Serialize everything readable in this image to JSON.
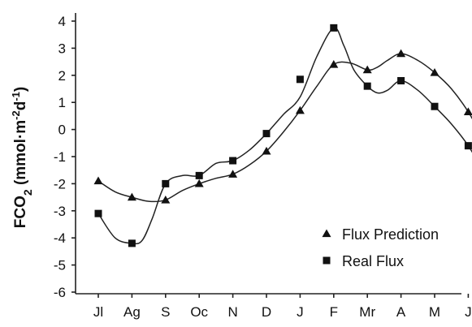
{
  "chart_data": {
    "type": "line",
    "ylabel": "FCO2 (mmol·m-2d-1)",
    "ylabel_parts": {
      "base": "FCO",
      "sub": "2",
      "open": " (mmol·m",
      "exp1": "-2",
      "mid": "d",
      "exp2": "-1",
      "close": ")"
    },
    "xlabel": "",
    "categories": [
      "Jl",
      "Ag",
      "S",
      "Oc",
      "N",
      "D",
      "J",
      "F",
      "Mr",
      "A",
      "M",
      "J"
    ],
    "ylim": [
      -6,
      4
    ],
    "yticks": [
      4,
      3,
      2,
      1,
      0,
      -1,
      -2,
      -3,
      -4,
      -5,
      -6
    ],
    "grid": false,
    "legend_position": "bottom-right",
    "series": [
      {
        "name": "Flux Prediction",
        "marker": "triangle",
        "x": [
          0,
          1,
          2,
          3,
          4,
          5,
          6,
          7,
          8,
          9,
          10,
          11
        ],
        "values": [
          -1.9,
          -2.5,
          -2.6,
          -2.0,
          -1.65,
          -0.8,
          0.7,
          2.4,
          2.2,
          2.8,
          2.1,
          0.65
        ],
        "curve_x": [
          0,
          0.5,
          1,
          1.5,
          2,
          2.5,
          3,
          3.5,
          4,
          4.5,
          5,
          5.5,
          6,
          6.5,
          7,
          7.5,
          8,
          8.3,
          8.6,
          9,
          9.5,
          10,
          10.5,
          11,
          11.5
        ],
        "curve_y": [
          -1.9,
          -2.3,
          -2.5,
          -2.65,
          -2.6,
          -2.25,
          -2.0,
          -1.8,
          -1.65,
          -1.3,
          -0.8,
          -0.1,
          0.7,
          1.6,
          2.4,
          2.45,
          2.2,
          2.3,
          2.55,
          2.8,
          2.55,
          2.1,
          1.5,
          0.65,
          -0.45
        ]
      },
      {
        "name": "Real Flux",
        "marker": "square",
        "x": [
          0,
          1,
          2,
          3,
          4,
          5,
          6,
          7,
          8,
          9,
          10,
          11
        ],
        "values": [
          -3.1,
          -4.2,
          -2.0,
          -1.7,
          -1.15,
          -0.15,
          1.85,
          3.75,
          1.6,
          1.8,
          0.85,
          -0.6
        ],
        "curve_x": [
          0,
          0.5,
          1,
          1.3,
          1.6,
          2,
          2.5,
          3,
          3.5,
          4,
          4.5,
          5,
          5.5,
          6,
          6.5,
          7,
          7.3,
          7.6,
          8,
          8.3,
          8.6,
          9,
          9.5,
          10,
          10.5,
          11,
          11.5
        ],
        "curve_y": [
          -3.1,
          -4.0,
          -4.2,
          -4.1,
          -3.3,
          -2.0,
          -1.7,
          -1.7,
          -1.25,
          -1.15,
          -0.75,
          -0.15,
          0.55,
          1.2,
          2.7,
          3.75,
          3.1,
          2.2,
          1.6,
          1.35,
          1.45,
          1.8,
          1.45,
          0.85,
          0.2,
          -0.6,
          -1.65
        ]
      }
    ],
    "colors": {
      "line": "#222222",
      "marker": "#111111",
      "background": "#ffffff"
    }
  }
}
